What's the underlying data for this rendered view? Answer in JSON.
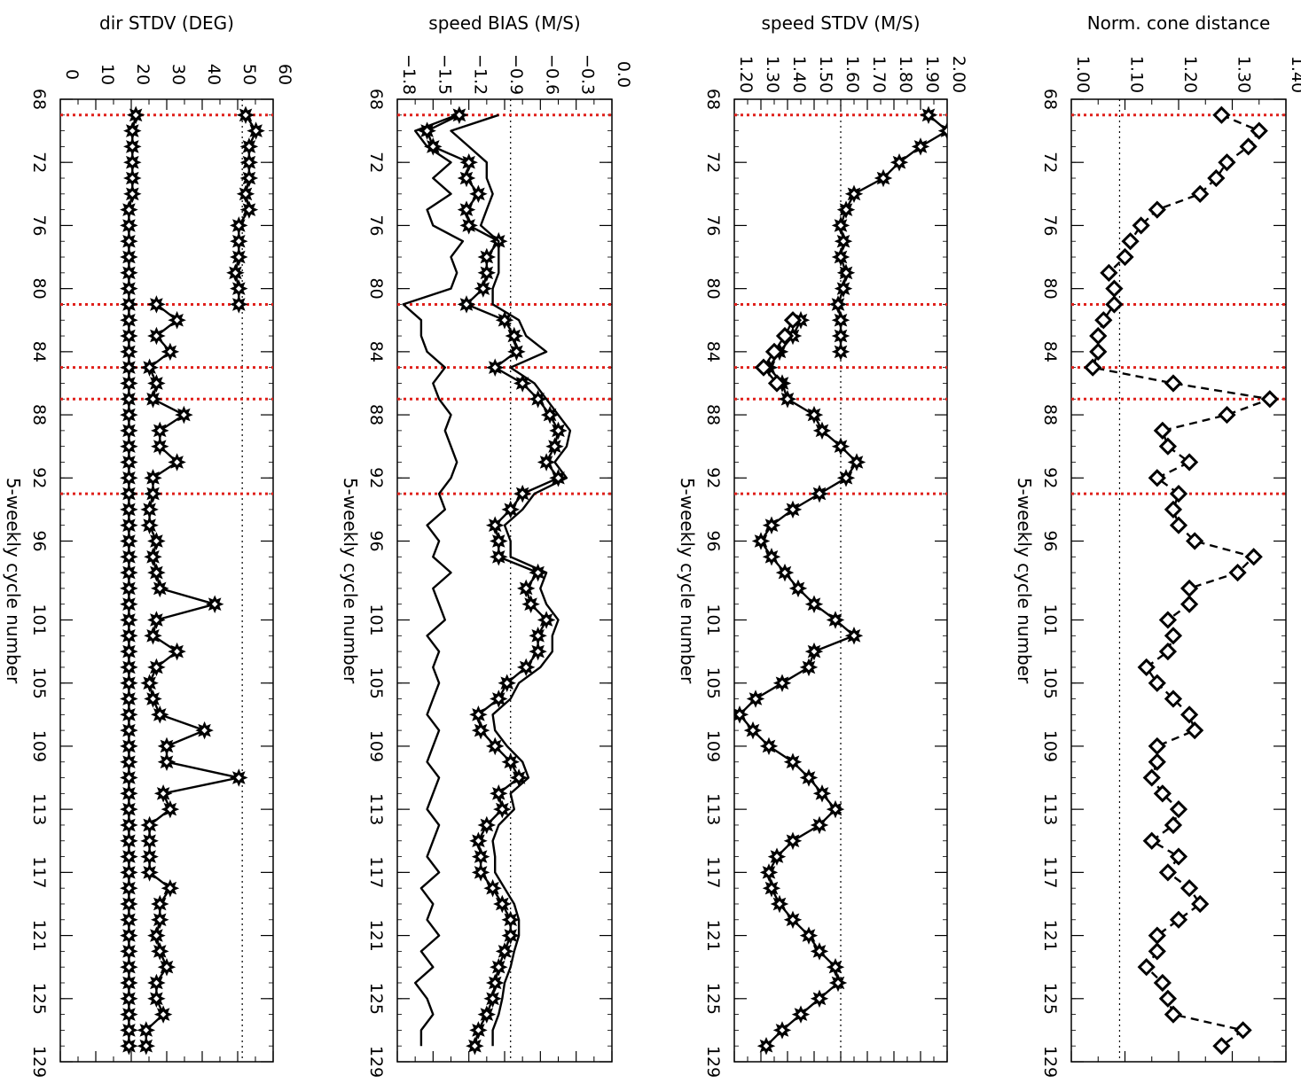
{
  "chart_data": [
    {
      "type": "scatter",
      "title": "",
      "ylabel": "dir STDV (DEG)",
      "xlabel": "5-weekly cycle number",
      "ylim": [
        0,
        62
      ],
      "yticks": [
        "0",
        "10",
        "20",
        "30",
        "40",
        "50",
        "60"
      ],
      "reference_line": 53,
      "series": [
        {
          "x": [
            69,
            70,
            71,
            72,
            73,
            74,
            75,
            76,
            77,
            78,
            79,
            80,
            81
          ],
          "values": [
            54,
            57,
            55,
            55,
            55,
            54,
            55,
            52,
            52,
            52,
            51,
            52,
            52
          ],
          "style": "solid-diamond"
        },
        {
          "x": [
            81,
            82,
            83,
            84,
            85,
            86,
            87,
            88,
            89,
            90,
            91,
            92,
            93,
            94,
            95,
            96,
            97,
            98,
            99,
            100,
            101,
            102,
            103,
            104,
            105,
            106,
            107,
            108,
            109,
            110,
            111,
            112,
            113,
            114,
            115,
            116,
            117,
            118,
            119,
            120,
            121,
            122,
            123,
            124,
            125,
            126,
            127,
            128
          ],
          "values": [
            28,
            34,
            28,
            32,
            26,
            28,
            27,
            36,
            29,
            29,
            34,
            27,
            27,
            26,
            26,
            28,
            27,
            28,
            29,
            45,
            28,
            27,
            34,
            28,
            26,
            27,
            29,
            42,
            31,
            31,
            52,
            30,
            32,
            26,
            26,
            26,
            26,
            32,
            29,
            29,
            28,
            29,
            31,
            28,
            28,
            30,
            25,
            25
          ],
          "style": "solid-diamond"
        },
        {
          "x": [
            69,
            70,
            71,
            72,
            73,
            74,
            75,
            76,
            77,
            78,
            79,
            80,
            81,
            82,
            83,
            84,
            85,
            86,
            87,
            88,
            89,
            90,
            91,
            92,
            93,
            94,
            95,
            96,
            97,
            98,
            99,
            100,
            101,
            102,
            103,
            104,
            105,
            106,
            107,
            108,
            109,
            110,
            111,
            112,
            113,
            114,
            115,
            116,
            117,
            118,
            119,
            120,
            121,
            122,
            123,
            124,
            125,
            126,
            127,
            128
          ],
          "values": [
            22,
            21,
            21,
            21,
            21,
            21,
            20,
            20,
            20,
            20,
            20,
            20,
            20,
            20,
            20,
            20,
            20,
            20,
            20,
            20,
            20,
            20,
            20,
            20,
            20,
            20,
            20,
            20,
            20,
            20,
            20,
            20,
            20,
            20,
            20,
            20,
            20,
            20,
            20,
            20,
            20,
            20,
            20,
            20,
            20,
            20,
            20,
            20,
            20,
            20,
            20,
            20,
            20,
            20,
            20,
            20,
            20,
            20,
            20,
            20
          ],
          "style": "solid-diamond"
        }
      ]
    },
    {
      "type": "line",
      "title": "",
      "ylabel": "speed BIAS (M/S)",
      "xlabel": "5-weekly cycle number",
      "ylim": [
        -1.8,
        0.0
      ],
      "yticks": [
        "−1.8",
        "−1.5",
        "−1.2",
        "−0.9",
        "−0.6",
        "−0.3",
        "0.0"
      ],
      "reference_line": -0.85,
      "series": [
        {
          "x": [
            69,
            70,
            71,
            72,
            73,
            74,
            75,
            76,
            77,
            78,
            79,
            80,
            81,
            82,
            83,
            84,
            85,
            86,
            87,
            88,
            89,
            90,
            91,
            92,
            93,
            94,
            95,
            96,
            97,
            98,
            99,
            100,
            101,
            102,
            103,
            104,
            105,
            106,
            107,
            108,
            109,
            110,
            111,
            112,
            113,
            114,
            115,
            116,
            117,
            118,
            119,
            120,
            121,
            122,
            123,
            124,
            125,
            126,
            127,
            128
          ],
          "values": [
            -1.28,
            -1.55,
            -1.5,
            -1.2,
            -1.22,
            -1.12,
            -1.22,
            -1.2,
            -0.95,
            -1.05,
            -1.05,
            -1.08,
            -1.22,
            -0.9,
            -0.82,
            -0.8,
            -0.98,
            -0.75,
            -0.62,
            -0.52,
            -0.45,
            -0.48,
            -0.55,
            -0.45,
            -0.75,
            -0.85,
            -0.98,
            -0.95,
            -0.95,
            -0.62,
            -0.72,
            -0.68,
            -0.55,
            -0.62,
            -0.62,
            -0.72,
            -0.88,
            -0.95,
            -1.12,
            -1.1,
            -0.98,
            -0.85,
            -0.78,
            -0.95,
            -0.92,
            -1.05,
            -1.12,
            -1.1,
            -1.1,
            -1.0,
            -0.92,
            -0.85,
            -0.85,
            -0.9,
            -0.95,
            -0.98,
            -1.0,
            -1.05,
            -1.12,
            -1.15
          ],
          "style": "solid-diamond"
        },
        {
          "x": [
            69,
            70,
            71,
            72,
            73,
            74,
            75,
            76,
            77,
            78,
            79,
            80,
            81,
            82,
            83,
            84,
            85,
            86,
            87,
            88,
            89,
            90,
            91,
            92,
            93,
            94,
            95,
            96,
            97,
            98,
            99,
            100,
            101,
            102,
            103,
            104,
            105,
            106,
            107,
            108,
            109,
            110,
            111,
            112,
            113,
            114,
            115,
            116,
            117,
            118,
            119,
            120,
            121,
            122,
            123,
            124,
            125,
            126,
            127,
            128
          ],
          "values": [
            -0.95,
            -1.35,
            -1.2,
            -1.05,
            -1.05,
            -1.0,
            -1.05,
            -1.1,
            -0.95,
            -0.95,
            -0.95,
            -1.0,
            -1.0,
            -0.78,
            -0.72,
            -0.55,
            -0.85,
            -0.65,
            -0.55,
            -0.45,
            -0.35,
            -0.38,
            -0.48,
            -0.38,
            -0.65,
            -0.75,
            -0.9,
            -0.85,
            -0.85,
            -0.55,
            -0.6,
            -0.55,
            -0.45,
            -0.5,
            -0.5,
            -0.6,
            -0.78,
            -0.85,
            -1.0,
            -0.98,
            -0.88,
            -0.75,
            -0.7,
            -0.85,
            -0.82,
            -0.95,
            -1.0,
            -0.98,
            -0.98,
            -0.9,
            -0.82,
            -0.78,
            -0.78,
            -0.82,
            -0.85,
            -0.9,
            -0.92,
            -0.95,
            -1.0,
            -1.0
          ],
          "style": "line"
        },
        {
          "x": [
            69,
            70,
            71,
            72,
            73,
            74,
            75,
            76,
            77,
            78,
            79,
            80,
            81,
            82,
            83,
            84,
            85,
            86,
            87,
            88,
            89,
            90,
            91,
            92,
            93,
            94,
            95,
            96,
            97,
            98,
            99,
            100,
            101,
            102,
            103,
            104,
            105,
            106,
            107,
            108,
            109,
            110,
            111,
            112,
            113,
            114,
            115,
            116,
            117,
            118,
            119,
            120,
            121,
            122,
            123,
            124,
            125,
            126,
            127,
            128
          ],
          "values": [
            -1.3,
            -1.65,
            -1.55,
            -1.35,
            -1.5,
            -1.35,
            -1.55,
            -1.5,
            -1.25,
            -1.35,
            -1.3,
            -1.35,
            -1.75,
            -1.6,
            -1.6,
            -1.55,
            -1.4,
            -1.5,
            -1.45,
            -1.35,
            -1.4,
            -1.35,
            -1.3,
            -1.35,
            -1.45,
            -1.4,
            -1.55,
            -1.45,
            -1.5,
            -1.35,
            -1.5,
            -1.45,
            -1.4,
            -1.55,
            -1.45,
            -1.5,
            -1.45,
            -1.5,
            -1.55,
            -1.45,
            -1.5,
            -1.55,
            -1.45,
            -1.5,
            -1.55,
            -1.45,
            -1.5,
            -1.55,
            -1.45,
            -1.6,
            -1.5,
            -1.55,
            -1.45,
            -1.6,
            -1.5,
            -1.65,
            -1.55,
            -1.5,
            -1.6,
            -1.6
          ],
          "style": "line"
        }
      ]
    },
    {
      "type": "line",
      "title": "",
      "ylabel": "speed STDV (M/S)",
      "xlabel": "5-weekly cycle number",
      "ylim": [
        1.2,
        2.0
      ],
      "yticks": [
        "1.20",
        "1.30",
        "1.40",
        "1.50",
        "1.60",
        "1.70",
        "1.80",
        "1.90",
        "2.00"
      ],
      "reference_line": 1.6,
      "series": [
        {
          "x": [
            69,
            70,
            71,
            72,
            73,
            74,
            75,
            76,
            77,
            78,
            79,
            80,
            81,
            82,
            83,
            84
          ],
          "values": [
            1.93,
            2.0,
            1.9,
            1.82,
            1.76,
            1.65,
            1.62,
            1.6,
            1.61,
            1.6,
            1.62,
            1.61,
            1.59,
            1.6,
            1.6,
            1.6
          ],
          "style": "solid-diamond"
        },
        {
          "x": [
            82,
            83,
            84,
            85,
            86,
            87,
            88,
            89,
            90,
            91,
            92,
            93,
            94,
            95,
            96,
            97,
            98,
            99,
            100,
            101,
            102,
            103,
            104,
            105,
            106,
            107,
            108,
            109,
            110,
            111,
            112,
            113,
            114,
            115,
            116,
            117,
            118,
            119,
            120,
            121,
            122,
            123,
            124,
            125,
            126,
            127,
            128
          ],
          "values": [
            1.45,
            1.42,
            1.37,
            1.33,
            1.38,
            1.4,
            1.5,
            1.53,
            1.6,
            1.66,
            1.62,
            1.52,
            1.42,
            1.34,
            1.3,
            1.34,
            1.39,
            1.44,
            1.5,
            1.58,
            1.65,
            1.5,
            1.48,
            1.38,
            1.28,
            1.22,
            1.27,
            1.33,
            1.42,
            1.48,
            1.53,
            1.58,
            1.52,
            1.42,
            1.36,
            1.33,
            1.34,
            1.37,
            1.42,
            1.48,
            1.52,
            1.58,
            1.59,
            1.52,
            1.45,
            1.38,
            1.32
          ],
          "style": "solid-diamond"
        },
        {
          "x": [
            82,
            83,
            84,
            85,
            86
          ],
          "values": [
            1.42,
            1.39,
            1.35,
            1.31,
            1.36
          ],
          "style": "open-diamond"
        }
      ]
    },
    {
      "type": "scatter",
      "title": "",
      "ylabel": "Norm. cone distance",
      "xlabel": "5-weekly cycle number",
      "ylim": [
        1.0,
        1.4
      ],
      "yticks": [
        "1.00",
        "1.10",
        "1.20",
        "1.30",
        "1.40"
      ],
      "reference_line": 1.09,
      "series": [
        {
          "x": [
            69,
            70,
            71,
            72,
            73,
            74,
            75,
            76,
            77,
            78,
            79,
            80,
            81,
            82,
            83,
            84,
            85,
            86,
            87,
            88,
            89,
            90,
            91,
            92,
            93,
            94,
            95,
            96,
            97,
            98,
            99,
            100,
            101,
            102,
            103,
            104,
            105,
            106,
            107,
            108,
            109,
            110,
            111,
            112,
            113,
            114,
            115,
            116,
            117,
            118,
            119,
            120,
            121,
            122,
            123,
            124,
            125,
            126,
            127,
            128
          ],
          "values": [
            1.28,
            1.35,
            1.33,
            1.29,
            1.27,
            1.24,
            1.16,
            1.13,
            1.11,
            1.1,
            1.07,
            1.08,
            1.08,
            1.06,
            1.05,
            1.05,
            1.04,
            1.19,
            1.37,
            1.29,
            1.17,
            1.18,
            1.22,
            1.16,
            1.2,
            1.19,
            1.2,
            1.23,
            1.34,
            1.31,
            1.22,
            1.22,
            1.18,
            1.19,
            1.18,
            1.14,
            1.16,
            1.19,
            1.22,
            1.23,
            1.16,
            1.16,
            1.15,
            1.17,
            1.2,
            1.19,
            1.15,
            1.2,
            1.18,
            1.22,
            1.24,
            1.2,
            1.16,
            1.16,
            1.14,
            1.17,
            1.18,
            1.19,
            1.32,
            1.28
          ],
          "style": "open-diamond-dashed"
        }
      ]
    }
  ],
  "xaxis": {
    "label": "5-weekly cycle number",
    "ticks": [
      "68",
      "72",
      "76",
      "80",
      "84",
      "88",
      "92",
      "96",
      "101",
      "105",
      "109",
      "113",
      "117",
      "121",
      "125",
      "129"
    ],
    "range": [
      68,
      129
    ]
  },
  "vertical_markers": [
    69,
    81,
    85,
    87,
    93
  ],
  "colors": {
    "axes": "#000000",
    "marker_lines": "#e0201b",
    "data": "#000000"
  }
}
